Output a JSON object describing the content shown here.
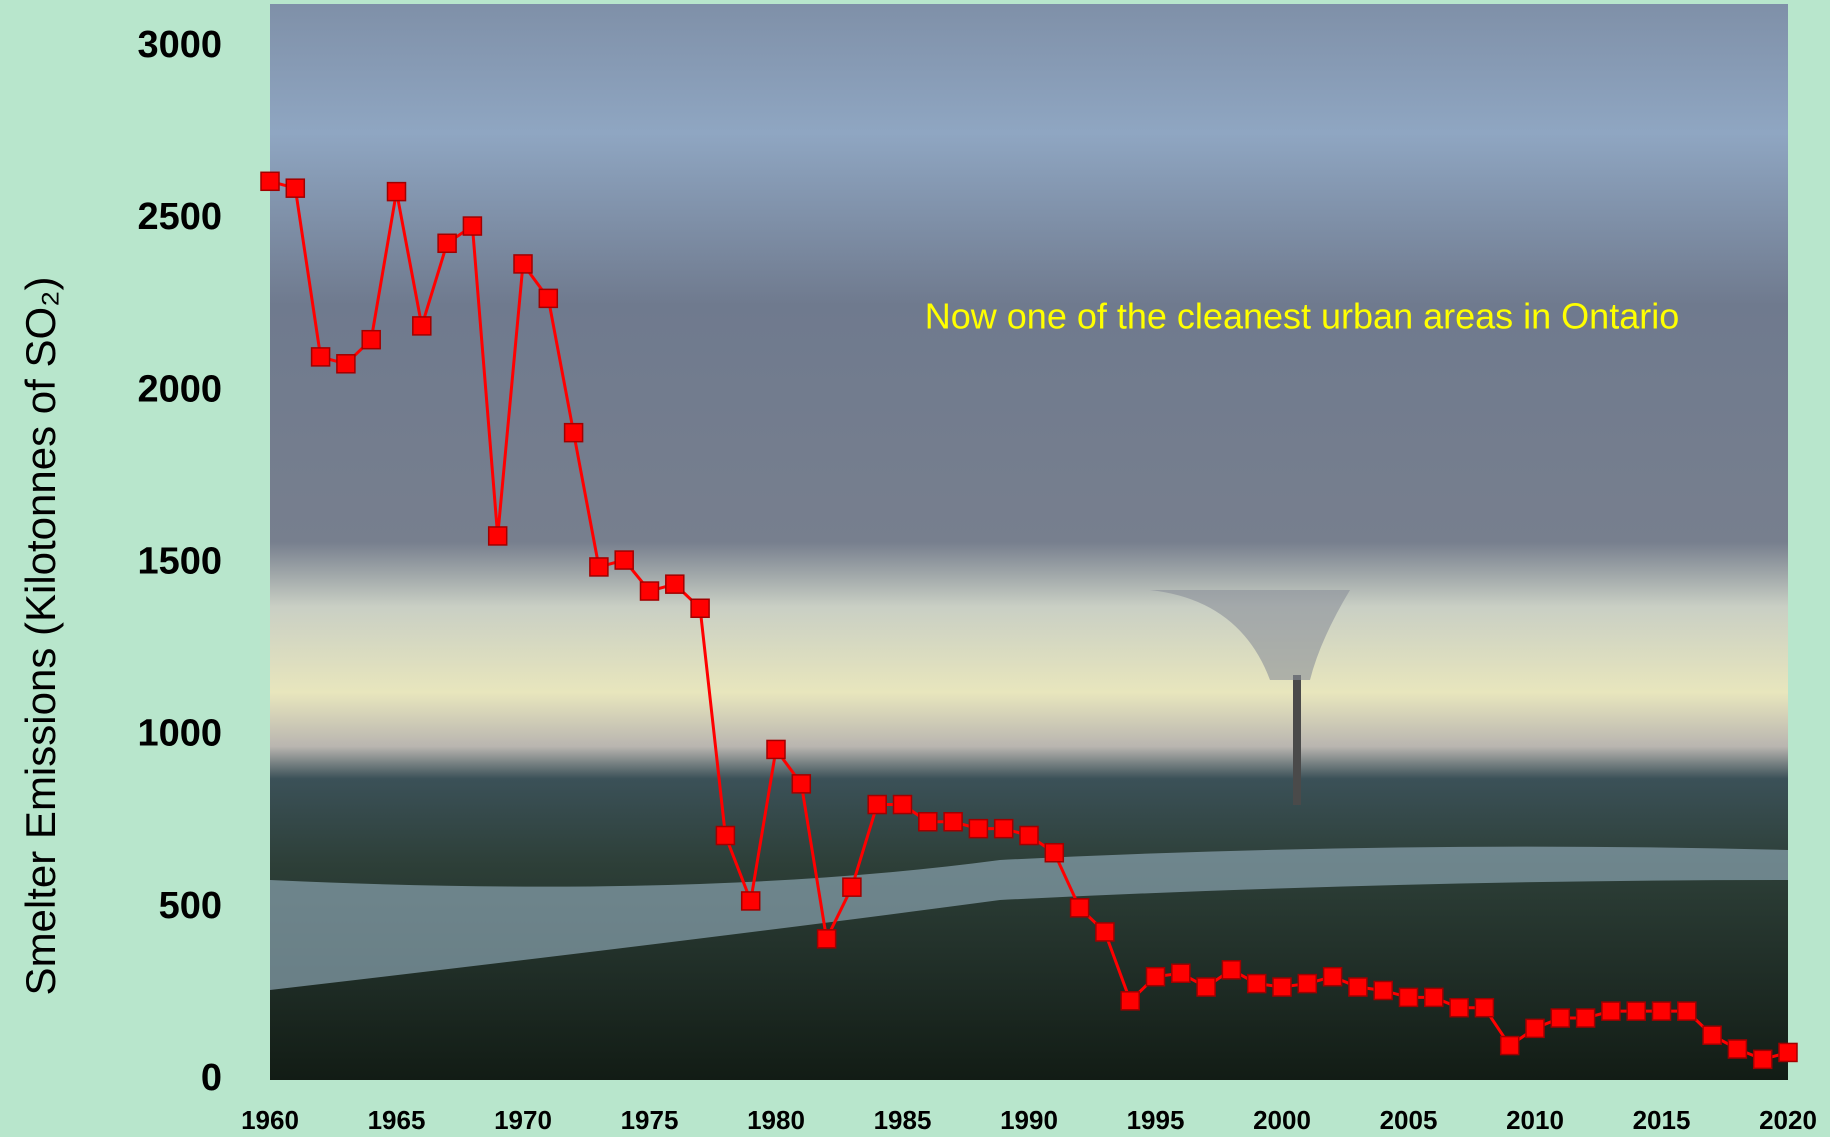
{
  "chart_data": {
    "type": "line",
    "y_label": "Smelter Emissions (Kilotonnes of SO₂)",
    "annotation": "Now one of the cleanest urban areas in Ontario",
    "x": [
      1960,
      1961,
      1962,
      1963,
      1964,
      1965,
      1966,
      1967,
      1968,
      1969,
      1970,
      1971,
      1972,
      1973,
      1974,
      1975,
      1976,
      1977,
      1978,
      1979,
      1980,
      1981,
      1982,
      1983,
      1984,
      1985,
      1986,
      1987,
      1988,
      1989,
      1990,
      1991,
      1992,
      1993,
      1994,
      1995,
      1996,
      1997,
      1998,
      1999,
      2000,
      2001,
      2002,
      2003,
      2004,
      2005,
      2006,
      2007,
      2008,
      2009,
      2010,
      2011,
      2012,
      2013,
      2014,
      2015,
      2016,
      2017,
      2018,
      2019,
      2020
    ],
    "series": [
      {
        "color": "#ff0000",
        "values": [
          2610,
          2590,
          2100,
          2080,
          2150,
          2580,
          2190,
          2430,
          2480,
          1580,
          2370,
          2270,
          1880,
          1490,
          1510,
          1420,
          1440,
          1370,
          710,
          520,
          960,
          860,
          410,
          560,
          800,
          800,
          750,
          750,
          730,
          730,
          710,
          660,
          500,
          430,
          230,
          300,
          310,
          270,
          320,
          280,
          270,
          280,
          300,
          270,
          260,
          240,
          240,
          210,
          210,
          100,
          150,
          180,
          180,
          200,
          200,
          200,
          200,
          130,
          90,
          60,
          80
        ]
      }
    ],
    "xlim": [
      1960,
      2020
    ],
    "xticks": [
      1960,
      1965,
      1970,
      1975,
      1980,
      1985,
      1990,
      1995,
      2000,
      2005,
      2010,
      2015,
      2020
    ],
    "ylim": [
      0,
      3000
    ],
    "yticks": [
      0,
      500,
      1000,
      1500,
      2000,
      2500,
      3000
    ]
  }
}
